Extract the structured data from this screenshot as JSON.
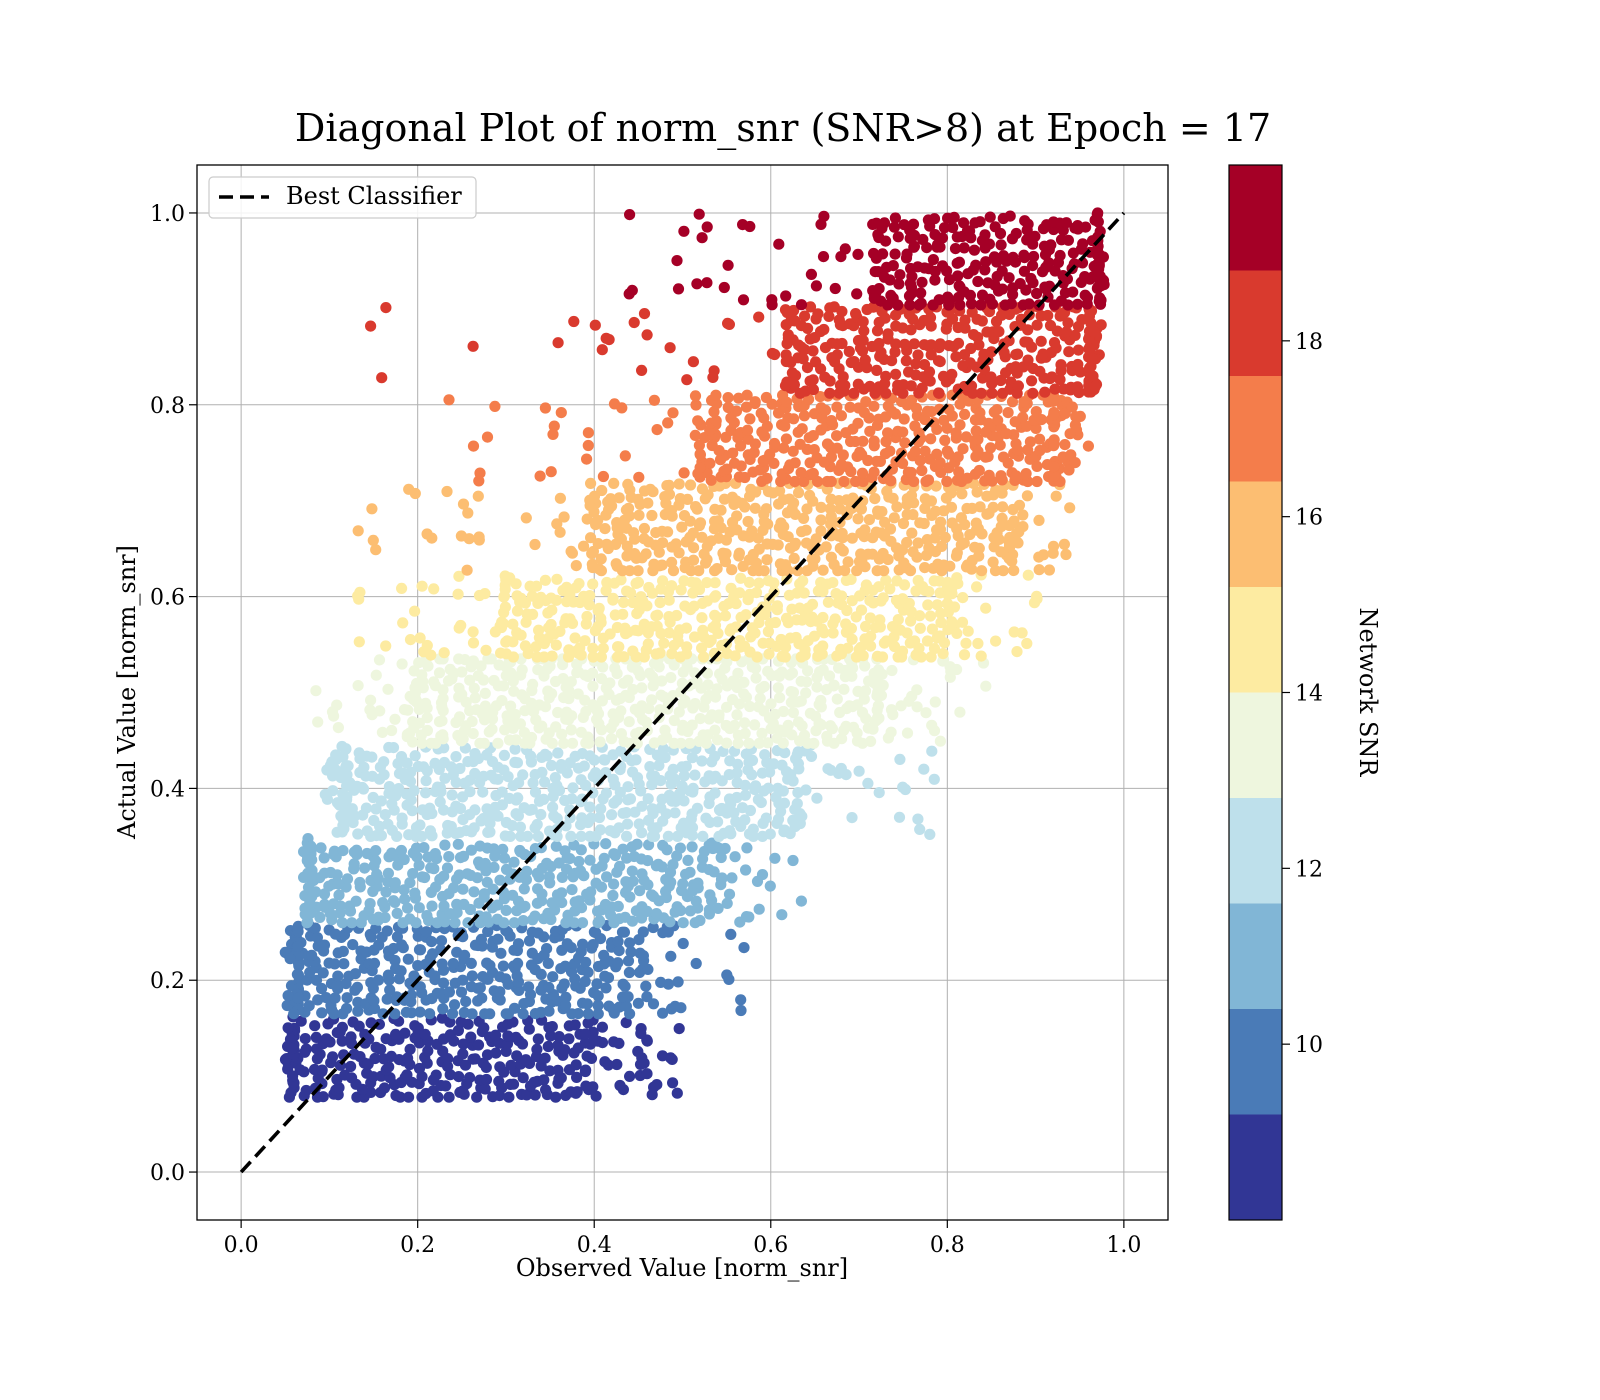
{
  "chart_data": {
    "type": "scatter",
    "title": "Diagonal Plot of norm_snr (SNR>8) at Epoch = 17",
    "xlabel": "Observed Value [norm_snr]",
    "ylabel": "Actual Value [norm_snr]",
    "xlim": [
      -0.05,
      1.05
    ],
    "ylim": [
      -0.05,
      1.05
    ],
    "x_ticks": [
      "0.0",
      "0.2",
      "0.4",
      "0.6",
      "0.8",
      "1.0"
    ],
    "y_ticks": [
      "0.0",
      "0.2",
      "0.4",
      "0.6",
      "0.8",
      "1.0"
    ],
    "grid": true,
    "legend": {
      "placement": "upper-left",
      "entries": [
        "Best Classifier"
      ]
    },
    "reference_line": {
      "name": "Best Classifier",
      "style": "dashed",
      "color": "#000000",
      "from": [
        0,
        0
      ],
      "to": [
        1,
        1
      ]
    },
    "colorbar": {
      "label": "Network SNR",
      "range": [
        8,
        20
      ],
      "ticks": [
        "10",
        "12",
        "14",
        "16",
        "18"
      ],
      "bands": [
        {
          "snr": [
            8,
            9.2
          ],
          "color": "#313695",
          "y_range": [
            0.078,
            0.163
          ],
          "x_core": [
            0.06,
            0.39
          ],
          "x_spread": [
            0.05,
            0.5
          ]
        },
        {
          "snr": [
            9.2,
            10.4
          ],
          "color": "#4a7bb7",
          "y_range": [
            0.165,
            0.257
          ],
          "x_core": [
            0.065,
            0.45
          ],
          "x_spread": [
            0.05,
            0.57
          ]
        },
        {
          "snr": [
            10.4,
            11.6
          ],
          "color": "#81b6d6",
          "y_range": [
            0.26,
            0.348
          ],
          "x_core": [
            0.08,
            0.53
          ],
          "x_spread": [
            0.07,
            0.64
          ]
        },
        {
          "snr": [
            11.6,
            12.8
          ],
          "color": "#bee0eb",
          "y_range": [
            0.35,
            0.445
          ],
          "x_core": [
            0.12,
            0.63
          ],
          "x_spread": [
            0.09,
            0.8
          ]
        },
        {
          "snr": [
            12.8,
            14
          ],
          "color": "#eef6de",
          "y_range": [
            0.447,
            0.535
          ],
          "x_core": [
            0.2,
            0.72
          ],
          "x_spread": [
            0.08,
            0.85
          ]
        },
        {
          "snr": [
            14,
            15.2
          ],
          "color": "#fdeba1",
          "y_range": [
            0.537,
            0.625
          ],
          "x_core": [
            0.3,
            0.8
          ],
          "x_spread": [
            0.13,
            0.91
          ]
        },
        {
          "snr": [
            15.2,
            16.4
          ],
          "color": "#fcbe72",
          "y_range": [
            0.627,
            0.718
          ],
          "x_core": [
            0.4,
            0.87
          ],
          "x_spread": [
            0.12,
            0.94
          ]
        },
        {
          "snr": [
            16.4,
            17.6
          ],
          "color": "#f47d4b",
          "y_range": [
            0.72,
            0.81
          ],
          "x_core": [
            0.52,
            0.92
          ],
          "x_spread": [
            0.23,
            0.96
          ]
        },
        {
          "snr": [
            17.6,
            18.8
          ],
          "color": "#d93a2e",
          "y_range": [
            0.812,
            0.902
          ],
          "x_core": [
            0.62,
            0.96
          ],
          "x_spread": [
            0.14,
            0.975
          ]
        },
        {
          "snr": [
            18.8,
            20
          ],
          "color": "#a50026",
          "y_range": [
            0.904,
            1.0
          ],
          "x_core": [
            0.72,
            0.97
          ],
          "x_spread": [
            0.37,
            0.98
          ]
        }
      ]
    }
  }
}
